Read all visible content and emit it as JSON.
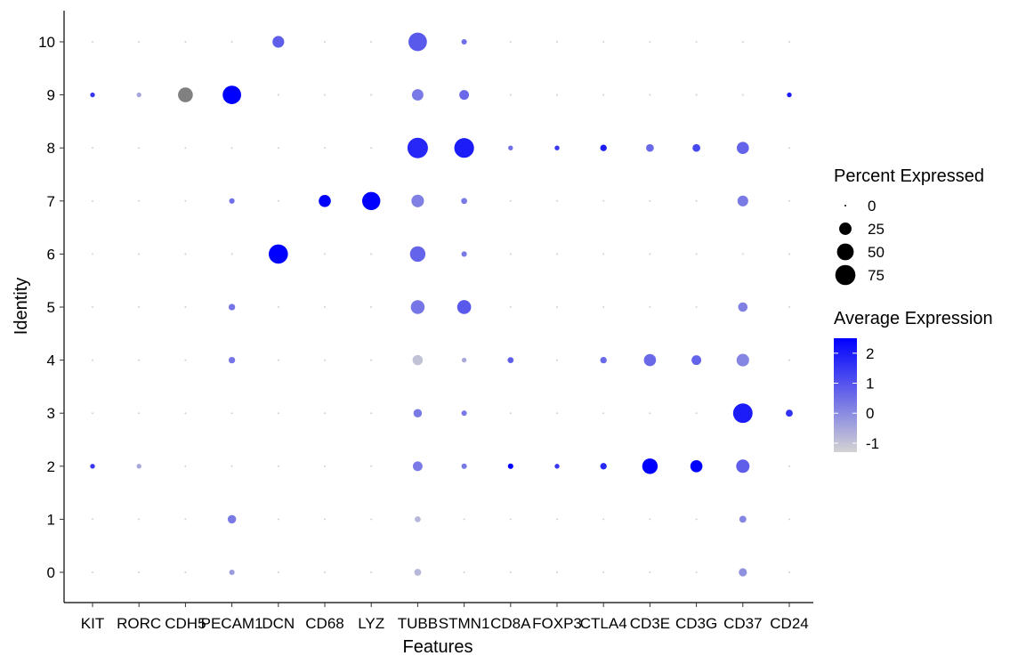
{
  "chart_data": {
    "type": "dotplot",
    "xlabel": "Features",
    "ylabel": "Identity",
    "features": [
      "KIT",
      "RORC",
      "CDH5",
      "PECAM1",
      "DCN",
      "CD68",
      "LYZ",
      "TUBB",
      "STMN1",
      "CD8A",
      "FOXP3",
      "CTLA4",
      "CD3E",
      "CD3G",
      "CD37",
      "CD24"
    ],
    "identities": [
      "0",
      "1",
      "2",
      "3",
      "4",
      "5",
      "6",
      "7",
      "8",
      "9",
      "10"
    ],
    "points": [
      {
        "feature": "KIT",
        "identity": "9",
        "pct": 2,
        "avg": 1.5
      },
      {
        "feature": "KIT",
        "identity": "2",
        "pct": 2,
        "avg": 1.5
      },
      {
        "feature": "RORC",
        "identity": "9",
        "pct": 2,
        "avg": -0.5
      },
      {
        "feature": "RORC",
        "identity": "2",
        "pct": 2,
        "avg": -0.5
      },
      {
        "feature": "CDH5",
        "identity": "9",
        "pct": 38,
        "grey": true
      },
      {
        "feature": "PECAM1",
        "identity": "9",
        "pct": 62,
        "avg": 2.5
      },
      {
        "feature": "PECAM1",
        "identity": "7",
        "pct": 3,
        "avg": 0.5
      },
      {
        "feature": "PECAM1",
        "identity": "5",
        "pct": 5,
        "avg": 0.4
      },
      {
        "feature": "PECAM1",
        "identity": "4",
        "pct": 5,
        "avg": 0.4
      },
      {
        "feature": "PECAM1",
        "identity": "1",
        "pct": 10,
        "avg": 0.3
      },
      {
        "feature": "PECAM1",
        "identity": "0",
        "pct": 3,
        "avg": -0.3
      },
      {
        "feature": "DCN",
        "identity": "10",
        "pct": 22,
        "avg": 0.8
      },
      {
        "feature": "DCN",
        "identity": "6",
        "pct": 68,
        "avg": 2.5
      },
      {
        "feature": "CD68",
        "identity": "7",
        "pct": 24,
        "avg": 2.5
      },
      {
        "feature": "LYZ",
        "identity": "7",
        "pct": 60,
        "avg": 2.5
      },
      {
        "feature": "TUBB",
        "identity": "10",
        "pct": 62,
        "avg": 0.9
      },
      {
        "feature": "TUBB",
        "identity": "9",
        "pct": 21,
        "avg": 0.3
      },
      {
        "feature": "TUBB",
        "identity": "8",
        "pct": 78,
        "avg": 1.8
      },
      {
        "feature": "TUBB",
        "identity": "7",
        "pct": 26,
        "avg": 0.2
      },
      {
        "feature": "TUBB",
        "identity": "6",
        "pct": 42,
        "avg": 0.7
      },
      {
        "feature": "TUBB",
        "identity": "5",
        "pct": 32,
        "avg": 0.4
      },
      {
        "feature": "TUBB",
        "identity": "4",
        "pct": 16,
        "avg": -1.0
      },
      {
        "feature": "TUBB",
        "identity": "3",
        "pct": 10,
        "avg": 0.3
      },
      {
        "feature": "TUBB",
        "identity": "2",
        "pct": 14,
        "avg": 0.3
      },
      {
        "feature": "TUBB",
        "identity": "1",
        "pct": 4,
        "avg": -0.8
      },
      {
        "feature": "TUBB",
        "identity": "0",
        "pct": 6,
        "avg": -0.8
      },
      {
        "feature": "STMN1",
        "identity": "10",
        "pct": 3,
        "avg": 0.5
      },
      {
        "feature": "STMN1",
        "identity": "9",
        "pct": 14,
        "avg": 0.6
      },
      {
        "feature": "STMN1",
        "identity": "8",
        "pct": 72,
        "avg": 2.0
      },
      {
        "feature": "STMN1",
        "identity": "7",
        "pct": 4,
        "avg": 0.3
      },
      {
        "feature": "STMN1",
        "identity": "6",
        "pct": 3,
        "avg": 0.3
      },
      {
        "feature": "STMN1",
        "identity": "5",
        "pct": 33,
        "avg": 0.9
      },
      {
        "feature": "STMN1",
        "identity": "4",
        "pct": 2,
        "avg": -0.5
      },
      {
        "feature": "STMN1",
        "identity": "3",
        "pct": 3,
        "avg": 0.3
      },
      {
        "feature": "STMN1",
        "identity": "2",
        "pct": 3,
        "avg": 0.3
      },
      {
        "feature": "CD8A",
        "identity": "8",
        "pct": 2,
        "avg": 0.5
      },
      {
        "feature": "CD8A",
        "identity": "4",
        "pct": 4,
        "avg": 0.8
      },
      {
        "feature": "CD8A",
        "identity": "2",
        "pct": 3,
        "avg": 2.5
      },
      {
        "feature": "FOXP3",
        "identity": "8",
        "pct": 2,
        "avg": 1.5
      },
      {
        "feature": "FOXP3",
        "identity": "2",
        "pct": 2,
        "avg": 1.5
      },
      {
        "feature": "CTLA4",
        "identity": "8",
        "pct": 5,
        "avg": 2.0
      },
      {
        "feature": "CTLA4",
        "identity": "4",
        "pct": 5,
        "avg": 0.6
      },
      {
        "feature": "CTLA4",
        "identity": "2",
        "pct": 5,
        "avg": 1.8
      },
      {
        "feature": "CD3E",
        "identity": "8",
        "pct": 8,
        "avg": 0.6
      },
      {
        "feature": "CD3E",
        "identity": "4",
        "pct": 24,
        "avg": 0.6
      },
      {
        "feature": "CD3E",
        "identity": "2",
        "pct": 42,
        "avg": 2.5
      },
      {
        "feature": "CD3G",
        "identity": "8",
        "pct": 8,
        "avg": 1.2
      },
      {
        "feature": "CD3G",
        "identity": "4",
        "pct": 14,
        "avg": 0.7
      },
      {
        "feature": "CD3G",
        "identity": "2",
        "pct": 24,
        "avg": 2.5
      },
      {
        "feature": "CD37",
        "identity": "8",
        "pct": 24,
        "avg": 0.7
      },
      {
        "feature": "CD37",
        "identity": "7",
        "pct": 18,
        "avg": 0.3
      },
      {
        "feature": "CD37",
        "identity": "5",
        "pct": 13,
        "avg": 0.2
      },
      {
        "feature": "CD37",
        "identity": "4",
        "pct": 26,
        "avg": 0.1
      },
      {
        "feature": "CD37",
        "identity": "3",
        "pct": 70,
        "avg": 2.0
      },
      {
        "feature": "CD37",
        "identity": "2",
        "pct": 30,
        "avg": 0.8
      },
      {
        "feature": "CD37",
        "identity": "1",
        "pct": 6,
        "avg": 0.1
      },
      {
        "feature": "CD37",
        "identity": "0",
        "pct": 9,
        "avg": -0.1
      },
      {
        "feature": "CD24",
        "identity": "9",
        "pct": 2,
        "avg": 2.0
      },
      {
        "feature": "CD24",
        "identity": "3",
        "pct": 6,
        "avg": 1.6
      }
    ],
    "size_legend": {
      "title": "Percent Expressed",
      "breaks": [
        0,
        25,
        50,
        75
      ]
    },
    "color_legend": {
      "title": "Average Expression",
      "breaks": [
        2,
        1,
        0,
        -1
      ],
      "range": [
        -1.3,
        2.5
      ],
      "low_color": "#d3d3d3",
      "high_color": "#0000ff"
    },
    "na_color": "#808080"
  }
}
